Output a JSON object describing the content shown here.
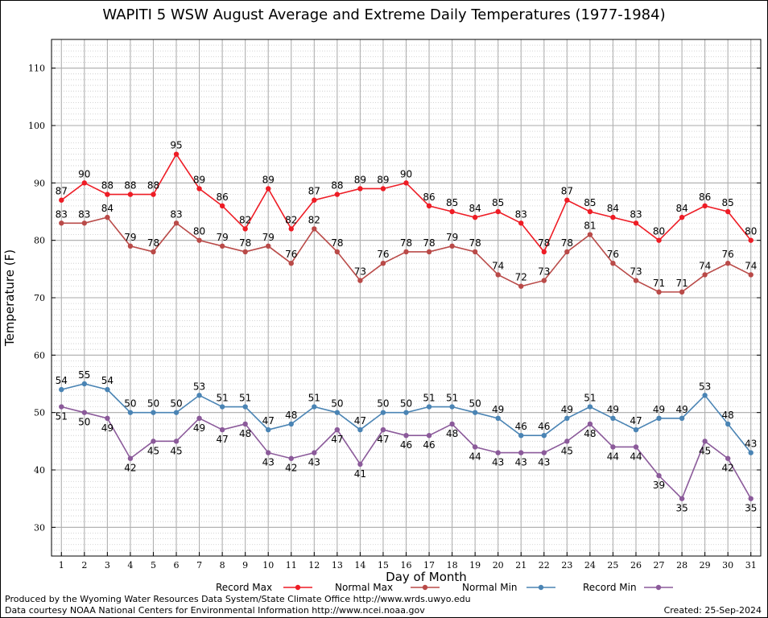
{
  "chart_data": {
    "type": "line",
    "title": "WAPITI 5 WSW August Average and Extreme Daily Temperatures (1977-1984)",
    "xlabel": "Day of Month",
    "ylabel": "Temperature (F)",
    "x": [
      1,
      2,
      3,
      4,
      5,
      6,
      7,
      8,
      9,
      10,
      11,
      12,
      13,
      14,
      15,
      16,
      17,
      18,
      19,
      20,
      21,
      22,
      23,
      24,
      25,
      26,
      27,
      28,
      29,
      30,
      31
    ],
    "ylim": [
      25,
      115
    ],
    "yticks": [
      30,
      40,
      50,
      60,
      70,
      80,
      90,
      100,
      110
    ],
    "grid": true,
    "legend_position": "bottom",
    "series": [
      {
        "name": "Record Max",
        "color": "#ee1c25",
        "values": [
          87,
          90,
          88,
          88,
          88,
          95,
          89,
          86,
          82,
          89,
          82,
          87,
          88,
          89,
          89,
          90,
          86,
          85,
          84,
          85,
          83,
          78,
          87,
          85,
          84,
          83,
          80,
          84,
          86,
          85,
          80
        ]
      },
      {
        "name": "Normal Max",
        "color": "#b94a48",
        "values": [
          83,
          83,
          84,
          79,
          78,
          83,
          80,
          79,
          78,
          79,
          76,
          82,
          78,
          73,
          76,
          78,
          78,
          79,
          78,
          74,
          72,
          73,
          78,
          81,
          76,
          73,
          71,
          71,
          74,
          76,
          74
        ]
      },
      {
        "name": "Normal Min",
        "color": "#4a84b4",
        "values": [
          54,
          55,
          54,
          50,
          50,
          50,
          53,
          51,
          51,
          47,
          48,
          51,
          50,
          47,
          50,
          50,
          51,
          51,
          50,
          49,
          46,
          46,
          49,
          51,
          49,
          47,
          49,
          49,
          53,
          48,
          43
        ]
      },
      {
        "name": "Record Min",
        "color": "#8b5a9a",
        "values": [
          51,
          50,
          49,
          42,
          45,
          45,
          49,
          47,
          48,
          43,
          42,
          43,
          47,
          41,
          47,
          46,
          46,
          48,
          44,
          43,
          43,
          43,
          45,
          48,
          44,
          44,
          39,
          35,
          45,
          42,
          35
        ]
      }
    ]
  },
  "footer": {
    "produced_by": "Produced by the Wyoming Water Resources Data System/State Climate Office http://www.wrds.uwyo.edu",
    "courtesy": "Data courtesy NOAA National Centers for Environmental Information http://www.ncei.noaa.gov",
    "created": "Created:  25-Sep-2024"
  }
}
